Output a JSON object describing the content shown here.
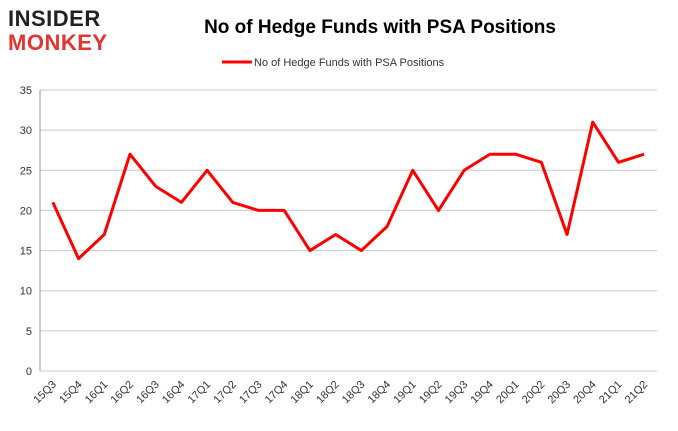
{
  "logo": {
    "top": "INSIDER",
    "bottom": "MONKEY"
  },
  "chart_data": {
    "type": "line",
    "title": "No of Hedge Funds with PSA Positions",
    "categories": [
      "15Q3",
      "15Q4",
      "16Q1",
      "16Q2",
      "16Q3",
      "16Q4",
      "17Q1",
      "17Q2",
      "17Q3",
      "17Q4",
      "18Q1",
      "18Q2",
      "18Q3",
      "18Q4",
      "19Q1",
      "19Q2",
      "19Q3",
      "19Q4",
      "20Q1",
      "20Q2",
      "20Q3",
      "20Q4",
      "21Q1",
      "21Q2"
    ],
    "series": [
      {
        "name": "No of Hedge Funds with PSA Positions",
        "color": "#ff0000",
        "values": [
          21,
          14,
          17,
          27,
          23,
          21,
          25,
          21,
          20,
          20,
          15,
          17,
          15,
          18,
          25,
          20,
          25,
          27,
          27,
          26,
          17,
          31,
          26,
          27
        ]
      }
    ],
    "ylim": [
      0,
      35
    ],
    "yticks": [
      0,
      5,
      10,
      15,
      20,
      25,
      30,
      35
    ],
    "grid": true,
    "legend": "top"
  }
}
